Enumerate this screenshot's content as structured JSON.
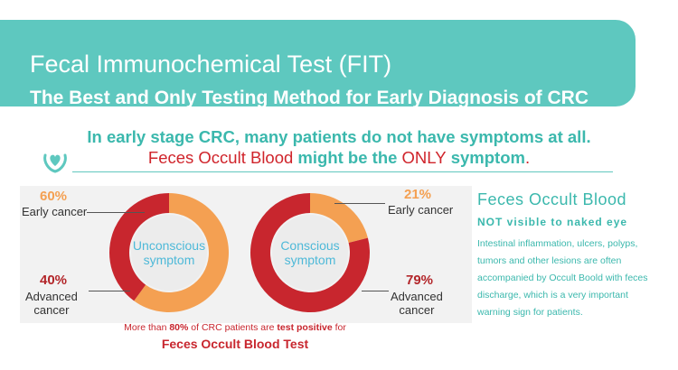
{
  "header": {
    "title": "Fecal Immunochemical Test (FIT)",
    "subtitle": "The Best and Only Testing Method for Early Diagnosis of CRC"
  },
  "intro": {
    "line1": "In early stage CRC, many patients do not have symptoms at all.",
    "line2_part1": "Feces Occult Blood",
    "line2_part2": " might be the ",
    "line2_part3": "ONLY",
    "line2_part4": " symptom",
    "line2_part5": "."
  },
  "charts": {
    "unconscious": {
      "label_line1": "Unconscious",
      "label_line2": "symptom",
      "early_pct": "60%",
      "early_label": "Early cancer",
      "advanced_pct": "40%",
      "advanced_label_line1": "Advanced",
      "advanced_label_line2": "cancer"
    },
    "conscious": {
      "label_line1": "Conscious",
      "label_line2": "symptom",
      "early_pct": "21%",
      "early_label": "Early cancer",
      "advanced_pct": "79%",
      "advanced_label_line1": "Advanced",
      "advanced_label_line2": "cancer"
    }
  },
  "bottom_note": {
    "part1": "More than ",
    "part2": "80%",
    "part3": " of CRC patients are ",
    "part4": "test positive",
    "part5": " for",
    "title": "Feces Occult Blood Test"
  },
  "side": {
    "title": "Feces Occult Blood",
    "subtitle": "NOT visible to naked eye",
    "body": "Intestinal inflammation, ulcers, polyps, tumors and other lesions are often accompanied by Occult Boold with feces discharge, which is a very important warning sign for patients."
  },
  "colors": {
    "teal": "#5ec8bf",
    "early": "#f4a052",
    "advanced": "#c8262e"
  },
  "chart_data": [
    {
      "type": "pie",
      "title": "Unconscious symptom",
      "categories": [
        "Early cancer",
        "Advanced cancer"
      ],
      "values": [
        60,
        40
      ]
    },
    {
      "type": "pie",
      "title": "Conscious symptom",
      "categories": [
        "Early cancer",
        "Advanced cancer"
      ],
      "values": [
        21,
        79
      ]
    }
  ]
}
